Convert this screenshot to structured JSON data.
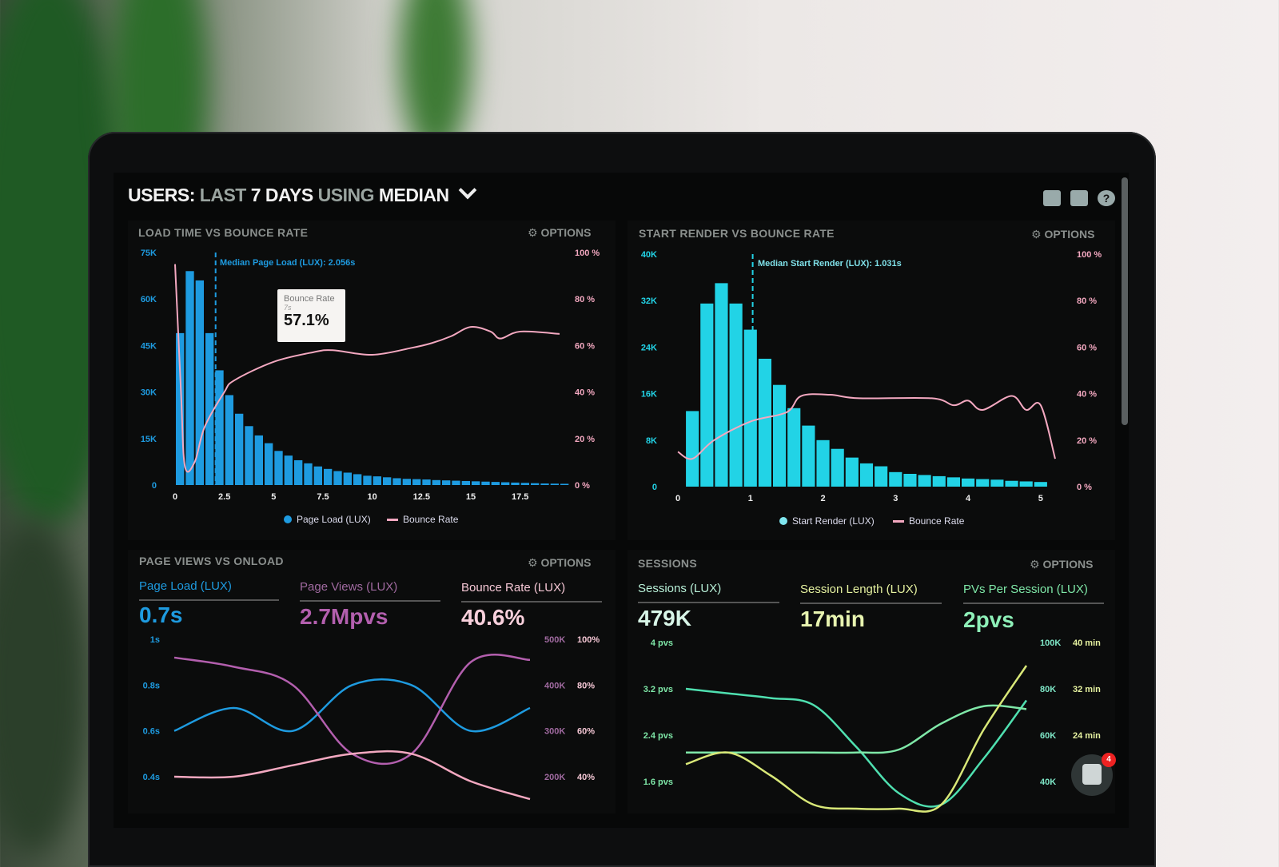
{
  "header": {
    "part1": "USERS:",
    "part2": "LAST",
    "part3": "7 DAYS",
    "part4": "USING",
    "part5": "MEDIAN",
    "icons": [
      "monitor-icon",
      "share-icon",
      "help-icon"
    ],
    "help_glyph": "?"
  },
  "colors": {
    "blue": "#1e9be0",
    "cyan": "#22d3e6",
    "pink": "#f3a8c0",
    "purple": "#b35fae",
    "teal": "#4fe0b0",
    "yellow": "#d9e878",
    "green": "#7fe8a8"
  },
  "panels": [
    {
      "title": "LOAD TIME VS BOUNCE RATE",
      "options": "OPTIONS",
      "median_label": "Median Page Load (LUX): 2.056s",
      "tooltip": {
        "title": "Bounce Rate",
        "sub": "7s",
        "value": "57.1%"
      },
      "legend": [
        "Page Load (LUX)",
        "Bounce Rate"
      ]
    },
    {
      "title": "START RENDER VS BOUNCE RATE",
      "options": "OPTIONS",
      "median_label": "Median Start Render (LUX): 1.031s",
      "legend": [
        "Start Render (LUX)",
        "Bounce Rate"
      ]
    },
    {
      "title": "PAGE VIEWS VS ONLOAD",
      "options": "OPTIONS",
      "metrics": [
        {
          "name": "Page Load (LUX)",
          "value": "0.7s"
        },
        {
          "name": "Page Views (LUX)",
          "value": "2.7Mpvs"
        },
        {
          "name": "Bounce Rate (LUX)",
          "value": "40.6%"
        }
      ]
    },
    {
      "title": "SESSIONS",
      "options": "OPTIONS",
      "metrics": [
        {
          "name": "Sessions (LUX)",
          "value": "479K"
        },
        {
          "name": "Session Length (LUX)",
          "value": "17min"
        },
        {
          "name": "PVs Per Session (LUX)",
          "value": "2pvs"
        }
      ]
    }
  ],
  "chat": {
    "badge": "4"
  },
  "chart_data": [
    {
      "type": "bar",
      "title": "LOAD TIME VS BOUNCE RATE",
      "xlim": [
        0,
        19.5
      ],
      "x_ticks": [
        "0",
        "2.5",
        "5",
        "7.5",
        "10",
        "12.5",
        "15",
        "17.5"
      ],
      "y_ticks": [
        "0",
        "15K",
        "30K",
        "45K",
        "60K",
        "75K"
      ],
      "ylim": [
        0,
        75000
      ],
      "y2_ticks": [
        "0 %",
        "20 %",
        "40 %",
        "60 %",
        "80 %",
        "100 %"
      ],
      "y2lim": [
        0,
        100
      ],
      "bar_width": 0.5,
      "series": [
        {
          "name": "Page Load (LUX)",
          "type": "bar",
          "x_start": 0,
          "values": [
            49000,
            69000,
            66000,
            49000,
            37000,
            29000,
            23000,
            19000,
            16000,
            13500,
            11000,
            9500,
            8000,
            7000,
            6000,
            5200,
            4500,
            4000,
            3500,
            3000,
            2800,
            2500,
            2200,
            2000,
            1900,
            1800,
            1600,
            1500,
            1400,
            1300,
            1200,
            1100,
            1000,
            900,
            800,
            700,
            600,
            500,
            450,
            400
          ]
        },
        {
          "name": "Bounce Rate",
          "type": "line",
          "points": [
            [
              0,
              95
            ],
            [
              0.3,
              40
            ],
            [
              0.5,
              8
            ],
            [
              1,
              10
            ],
            [
              1.5,
              25
            ],
            [
              2.5,
              40
            ],
            [
              3,
              45
            ],
            [
              5,
              53
            ],
            [
              7,
              57.1
            ],
            [
              8,
              58
            ],
            [
              10,
              56
            ],
            [
              12,
              59
            ],
            [
              13,
              61
            ],
            [
              14,
              64
            ],
            [
              15,
              68
            ],
            [
              16,
              66
            ],
            [
              16.5,
              63
            ],
            [
              17.5,
              66
            ],
            [
              19.5,
              65
            ]
          ]
        }
      ],
      "median": 2.056
    },
    {
      "type": "bar",
      "title": "START RENDER VS BOUNCE RATE",
      "xlim": [
        0,
        5.2
      ],
      "x_ticks": [
        "0",
        "1",
        "2",
        "3",
        "4",
        "5"
      ],
      "y_ticks": [
        "0",
        "8K",
        "16K",
        "24K",
        "32K",
        "40K"
      ],
      "ylim": [
        0,
        40000
      ],
      "y2_ticks": [
        "0 %",
        "20 %",
        "40 %",
        "60 %",
        "80 %",
        "100 %"
      ],
      "y2lim": [
        0,
        100
      ],
      "bar_width": 0.2,
      "series": [
        {
          "name": "Start Render (LUX)",
          "type": "bar",
          "x_start": 0.1,
          "values": [
            13000,
            31500,
            35000,
            31500,
            27000,
            22000,
            17500,
            13500,
            10500,
            8000,
            6500,
            5000,
            4000,
            3500,
            2500,
            2200,
            2000,
            1800,
            1600,
            1400,
            1300,
            1200,
            1000,
            900,
            800
          ]
        },
        {
          "name": "Bounce Rate",
          "type": "line",
          "points": [
            [
              0,
              15
            ],
            [
              0.2,
              12
            ],
            [
              0.5,
              20
            ],
            [
              1,
              28
            ],
            [
              1.5,
              32
            ],
            [
              1.7,
              39
            ],
            [
              2.1,
              39.5
            ],
            [
              2.5,
              38
            ],
            [
              3.5,
              38
            ],
            [
              3.8,
              35
            ],
            [
              4,
              37
            ],
            [
              4.2,
              33
            ],
            [
              4.6,
              39
            ],
            [
              4.8,
              33
            ],
            [
              5,
              35
            ],
            [
              5.2,
              12
            ]
          ]
        }
      ],
      "median": 1.031
    },
    {
      "type": "line",
      "title": "PAGE VIEWS VS ONLOAD",
      "y_ticks": [
        "0.4s",
        "0.6s",
        "0.8s",
        "1s"
      ],
      "ylim": [
        0.4,
        1.0
      ],
      "y2_ticks": [
        "200K",
        "300K",
        "400K",
        "500K"
      ],
      "y2lim": [
        200000,
        500000
      ],
      "y3_ticks": [
        "40%",
        "60%",
        "80%",
        "100%"
      ],
      "y3lim": [
        40,
        100
      ],
      "series": [
        {
          "name": "Page Load (LUX)",
          "axis": "left",
          "values": [
            0.6,
            0.7,
            0.6,
            0.8,
            0.8,
            0.6,
            0.7
          ]
        },
        {
          "name": "Page Views (LUX)",
          "axis": "right",
          "values": [
            460000,
            440000,
            400000,
            250000,
            250000,
            450000,
            455000
          ]
        },
        {
          "name": "Bounce Rate (LUX)",
          "axis": "right2",
          "values": [
            40,
            40,
            45,
            50,
            50,
            38,
            30
          ]
        }
      ]
    },
    {
      "type": "line",
      "title": "SESSIONS",
      "y_ticks": [
        "1.6 pvs",
        "2.4 pvs",
        "3.2 pvs",
        "4 pvs"
      ],
      "ylim": [
        1.6,
        4.0
      ],
      "y2_ticks": [
        "40K",
        "60K",
        "80K",
        "100K"
      ],
      "y2lim": [
        40000,
        100000
      ],
      "y3_ticks": [
        "24 min",
        "32 min",
        "40 min"
      ],
      "y3lim": [
        16,
        40
      ],
      "series": [
        {
          "name": "Sessions (LUX)",
          "axis": "right",
          "values": [
            80000,
            78000,
            76000,
            73000,
            55000,
            35000,
            30000,
            50000,
            75000
          ]
        },
        {
          "name": "PVs Per Session (LUX)",
          "axis": "left",
          "values": [
            2.1,
            2.1,
            2.1,
            2.1,
            2.1,
            2.15,
            2.6,
            2.9,
            2.85
          ]
        },
        {
          "name": "Session Length (LUX)",
          "axis": "right2",
          "values": [
            19,
            21,
            17,
            12,
            8,
            5,
            12,
            25,
            36
          ]
        }
      ]
    }
  ]
}
